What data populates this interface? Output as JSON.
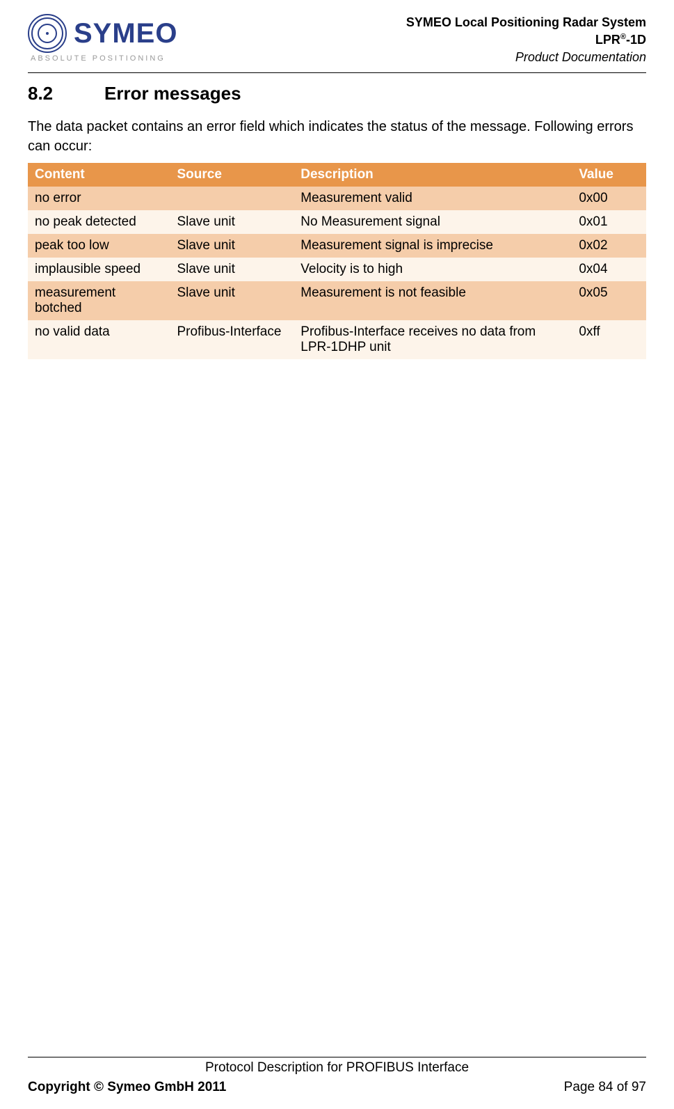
{
  "header": {
    "logo_text": "SYMEO",
    "logo_subtitle": "ABSOLUTE POSITIONING",
    "title_line1": "SYMEO Local Positioning Radar System",
    "title_line2_prefix": "LPR",
    "title_line2_sup": "®",
    "title_line2_suffix": "-1D",
    "title_line3": "Product Documentation"
  },
  "section": {
    "number": "8.2",
    "title": "Error messages",
    "intro": "The data packet contains an error field which indicates the status of the message. Following errors can occur:"
  },
  "table": {
    "columns": [
      "Content",
      "Source",
      "Description",
      "Value"
    ],
    "column_widths_pct": [
      23,
      20,
      45,
      12
    ],
    "header_bg": "#e8964a",
    "header_fg": "#ffffff",
    "row_dark_bg": "#f5cdaa",
    "row_light_bg": "#fdf4ea",
    "text_color": "#000000",
    "rows": [
      {
        "content": "no error",
        "source": "",
        "description": "Measurement valid",
        "value": "0x00",
        "shade": "dark"
      },
      {
        "content": "no peak detected",
        "source": "Slave unit",
        "description": "No Measurement signal",
        "value": "0x01",
        "shade": "light"
      },
      {
        "content": "peak too low",
        "source": "Slave unit",
        "description": "Measurement signal is imprecise",
        "value": "0x02",
        "shade": "dark"
      },
      {
        "content": "implausible speed",
        "source": "Slave unit",
        "description": "Velocity is to high",
        "value": "0x04",
        "shade": "light"
      },
      {
        "content": "measurement botched",
        "source": "Slave unit",
        "description": "Measurement is not feasible",
        "value": "0x05",
        "shade": "dark"
      },
      {
        "content": "no valid data",
        "source": "Profibus-Interface",
        "description": "Profibus-Interface receives no data from LPR-1DHP unit",
        "value": "0xff",
        "shade": "light"
      }
    ]
  },
  "footer": {
    "protocol": "Protocol Description for PROFIBUS Interface",
    "copyright": "Copyright © Symeo GmbH 2011",
    "page": "Page 84 of 97"
  }
}
